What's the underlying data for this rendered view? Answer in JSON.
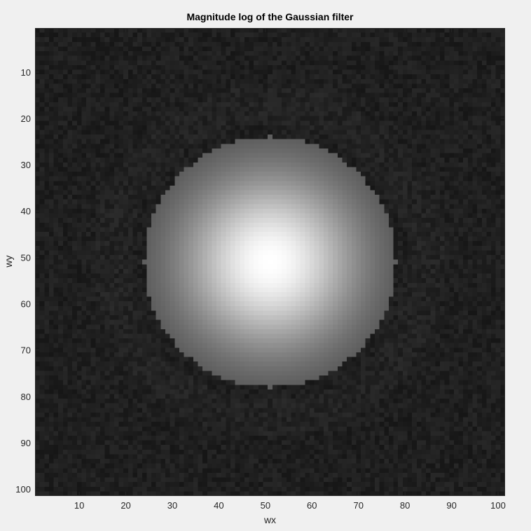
{
  "chart_data": {
    "type": "heatmap",
    "title": "Magnitude log of the Gaussian filter",
    "xlabel": "wx",
    "ylabel": "wy",
    "xlim": [
      0.5,
      101.5
    ],
    "ylim": [
      0.5,
      101.5
    ],
    "y_direction": "reversed",
    "colormap": "gray",
    "grid_size": [
      101,
      101
    ],
    "x_ticks": [
      10,
      20,
      30,
      40,
      50,
      60,
      70,
      80,
      90,
      100
    ],
    "y_ticks": [
      10,
      20,
      30,
      40,
      50,
      60,
      70,
      80,
      90,
      100
    ],
    "center": [
      51,
      51
    ],
    "disk_radius": 27,
    "peak_level": 1.0,
    "background_level": 0.12
  }
}
